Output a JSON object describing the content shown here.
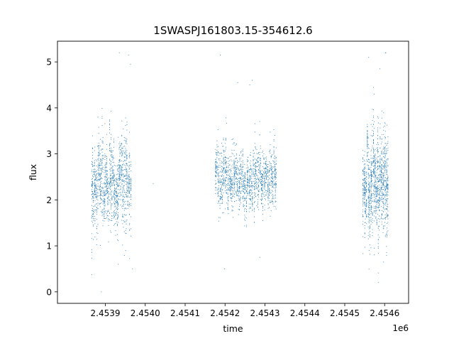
{
  "chart_data": {
    "type": "scatter",
    "title": "1SWASPJ161803.15-354612.6",
    "xlabel": "time",
    "ylabel": "flux",
    "x_offset_label": "1e6",
    "xlim": [
      2453780,
      2454660
    ],
    "ylim": [
      -0.25,
      5.45
    ],
    "x_ticks": [
      2453900,
      2454000,
      2454100,
      2454200,
      2454300,
      2454400,
      2454500,
      2454600
    ],
    "x_tick_labels": [
      "2.4539",
      "2.4540",
      "2.4541",
      "2.4542",
      "2.4543",
      "2.4544",
      "2.4545",
      "2.4546"
    ],
    "y_ticks": [
      0,
      1,
      2,
      3,
      4,
      5
    ],
    "y_tick_labels": [
      "0",
      "1",
      "2",
      "3",
      "4",
      "5"
    ],
    "grid": false,
    "legend": "none",
    "marker_color": "#1f77b4",
    "observing_seasons": [
      {
        "x_range": [
          2453865,
          2453965
        ],
        "median_flux": 2.3,
        "spread": 0.55,
        "n": 1400
      },
      {
        "x_range": [
          2454175,
          2454330
        ],
        "median_flux": 2.4,
        "spread": 0.38,
        "n": 1700
      },
      {
        "x_range": [
          2454545,
          2454610
        ],
        "median_flux": 2.3,
        "spread": 0.55,
        "n": 1300
      }
    ],
    "outliers": [
      {
        "x": 2453890,
        "y": 0.0
      },
      {
        "x": 2453935,
        "y": 5.2
      },
      {
        "x": 2453958,
        "y": 5.15
      },
      {
        "x": 2453963,
        "y": 4.95
      },
      {
        "x": 2453968,
        "y": 0.5
      },
      {
        "x": 2454188,
        "y": 5.15
      },
      {
        "x": 2454199,
        "y": 0.5
      },
      {
        "x": 2454232,
        "y": 4.55
      },
      {
        "x": 2454262,
        "y": 4.5
      },
      {
        "x": 2454268,
        "y": 4.6
      },
      {
        "x": 2454287,
        "y": 0.75
      },
      {
        "x": 2454560,
        "y": 5.1
      },
      {
        "x": 2454603,
        "y": 5.2
      },
      {
        "x": 2454588,
        "y": 4.85
      },
      {
        "x": 2454574,
        "y": 0.95
      },
      {
        "x": 2454020,
        "y": 2.35
      }
    ]
  }
}
